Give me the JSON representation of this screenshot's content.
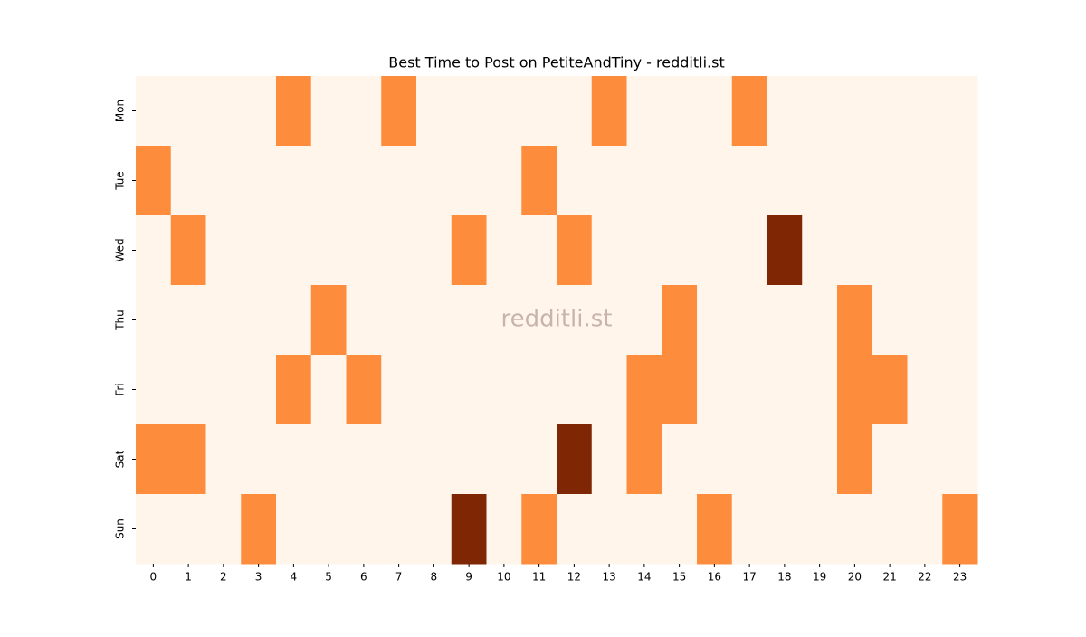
{
  "chart_data": {
    "type": "heatmap",
    "title": "Best Time to Post on PetiteAndTiny - redditli.st",
    "watermark": "redditli.st",
    "x_categories": [
      "0",
      "1",
      "2",
      "3",
      "4",
      "5",
      "6",
      "7",
      "8",
      "9",
      "10",
      "11",
      "12",
      "13",
      "14",
      "15",
      "16",
      "17",
      "18",
      "19",
      "20",
      "21",
      "22",
      "23"
    ],
    "y_categories": [
      "Mon",
      "Tue",
      "Wed",
      "Thu",
      "Fri",
      "Sat",
      "Sun"
    ],
    "colors": [
      "#fff5eb",
      "#fd8d3c",
      "#7f2704"
    ],
    "values": [
      [
        0,
        0,
        0,
        0,
        1,
        0,
        0,
        1,
        0,
        0,
        0,
        0,
        0,
        1,
        0,
        0,
        0,
        1,
        0,
        0,
        0,
        0,
        0,
        0
      ],
      [
        1,
        0,
        0,
        0,
        0,
        0,
        0,
        0,
        0,
        0,
        0,
        1,
        0,
        0,
        0,
        0,
        0,
        0,
        0,
        0,
        0,
        0,
        0,
        0
      ],
      [
        0,
        1,
        0,
        0,
        0,
        0,
        0,
        0,
        0,
        1,
        0,
        0,
        1,
        0,
        0,
        0,
        0,
        0,
        2,
        0,
        0,
        0,
        0,
        0
      ],
      [
        0,
        0,
        0,
        0,
        0,
        1,
        0,
        0,
        0,
        0,
        0,
        0,
        0,
        0,
        0,
        1,
        0,
        0,
        0,
        0,
        1,
        0,
        0,
        0
      ],
      [
        0,
        0,
        0,
        0,
        1,
        0,
        1,
        0,
        0,
        0,
        0,
        0,
        0,
        0,
        1,
        1,
        0,
        0,
        0,
        0,
        1,
        1,
        0,
        0
      ],
      [
        1,
        1,
        0,
        0,
        0,
        0,
        0,
        0,
        0,
        0,
        0,
        0,
        2,
        0,
        1,
        0,
        0,
        0,
        0,
        0,
        1,
        0,
        0,
        0
      ],
      [
        0,
        0,
        0,
        1,
        0,
        0,
        0,
        0,
        0,
        2,
        0,
        1,
        0,
        0,
        0,
        0,
        1,
        0,
        0,
        0,
        0,
        0,
        0,
        1
      ]
    ]
  }
}
